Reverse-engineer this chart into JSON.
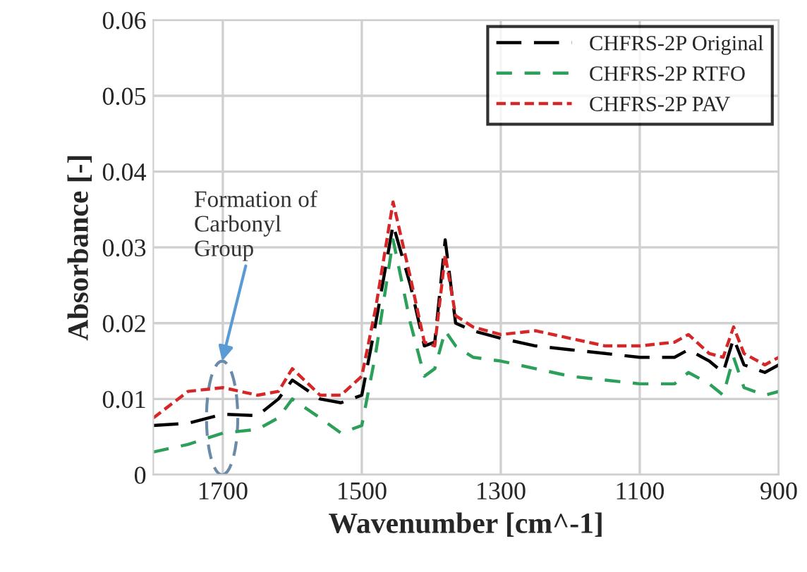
{
  "chart_data": {
    "type": "line",
    "xlabel": "Wavenumber [cm^-1]",
    "ylabel": "Absorbance [-]",
    "x": [
      1800,
      1750,
      1700,
      1650,
      1620,
      1600,
      1560,
      1530,
      1500,
      1480,
      1455,
      1430,
      1410,
      1395,
      1380,
      1365,
      1340,
      1300,
      1250,
      1200,
      1150,
      1100,
      1050,
      1030,
      1000,
      980,
      965,
      950,
      920,
      900
    ],
    "series": [
      {
        "name": "CHFRS-2P Original",
        "color": "#000000",
        "line_style": "dashed",
        "values": [
          0.0065,
          0.0068,
          0.008,
          0.0078,
          0.01,
          0.0125,
          0.01,
          0.0095,
          0.0105,
          0.02,
          0.033,
          0.025,
          0.017,
          0.0175,
          0.031,
          0.02,
          0.019,
          0.018,
          0.017,
          0.0165,
          0.016,
          0.0155,
          0.0155,
          0.0165,
          0.015,
          0.0135,
          0.018,
          0.0145,
          0.0135,
          0.0145
        ]
      },
      {
        "name": "CHFRS-2P RTFO",
        "color": "#2ca05a",
        "line_style": "dashed",
        "values": [
          0.003,
          0.004,
          0.0055,
          0.006,
          0.0075,
          0.01,
          0.0075,
          0.0055,
          0.0065,
          0.016,
          0.031,
          0.02,
          0.013,
          0.014,
          0.019,
          0.017,
          0.0155,
          0.015,
          0.014,
          0.013,
          0.0125,
          0.012,
          0.012,
          0.0135,
          0.012,
          0.0105,
          0.0155,
          0.0115,
          0.0105,
          0.011
        ]
      },
      {
        "name": "CHFRS-2P PAV",
        "color": "#d62728",
        "line_style": "dotted",
        "values": [
          0.0075,
          0.011,
          0.0115,
          0.0105,
          0.011,
          0.014,
          0.0105,
          0.0105,
          0.013,
          0.022,
          0.036,
          0.026,
          0.0175,
          0.017,
          0.029,
          0.021,
          0.0195,
          0.0185,
          0.019,
          0.018,
          0.017,
          0.017,
          0.0175,
          0.0185,
          0.016,
          0.0155,
          0.0195,
          0.016,
          0.0145,
          0.0155
        ]
      }
    ],
    "xlim": [
      1800,
      900
    ],
    "xticks": [
      1700,
      1500,
      1300,
      1100,
      900
    ],
    "ylim": [
      0,
      0.06
    ],
    "yticks": [
      0,
      0.01,
      0.02,
      0.03,
      0.04,
      0.05,
      0.06
    ],
    "grid": true,
    "legend": "top right",
    "annotations": [
      "Formation of\nCarbonyl\nGroup"
    ]
  }
}
